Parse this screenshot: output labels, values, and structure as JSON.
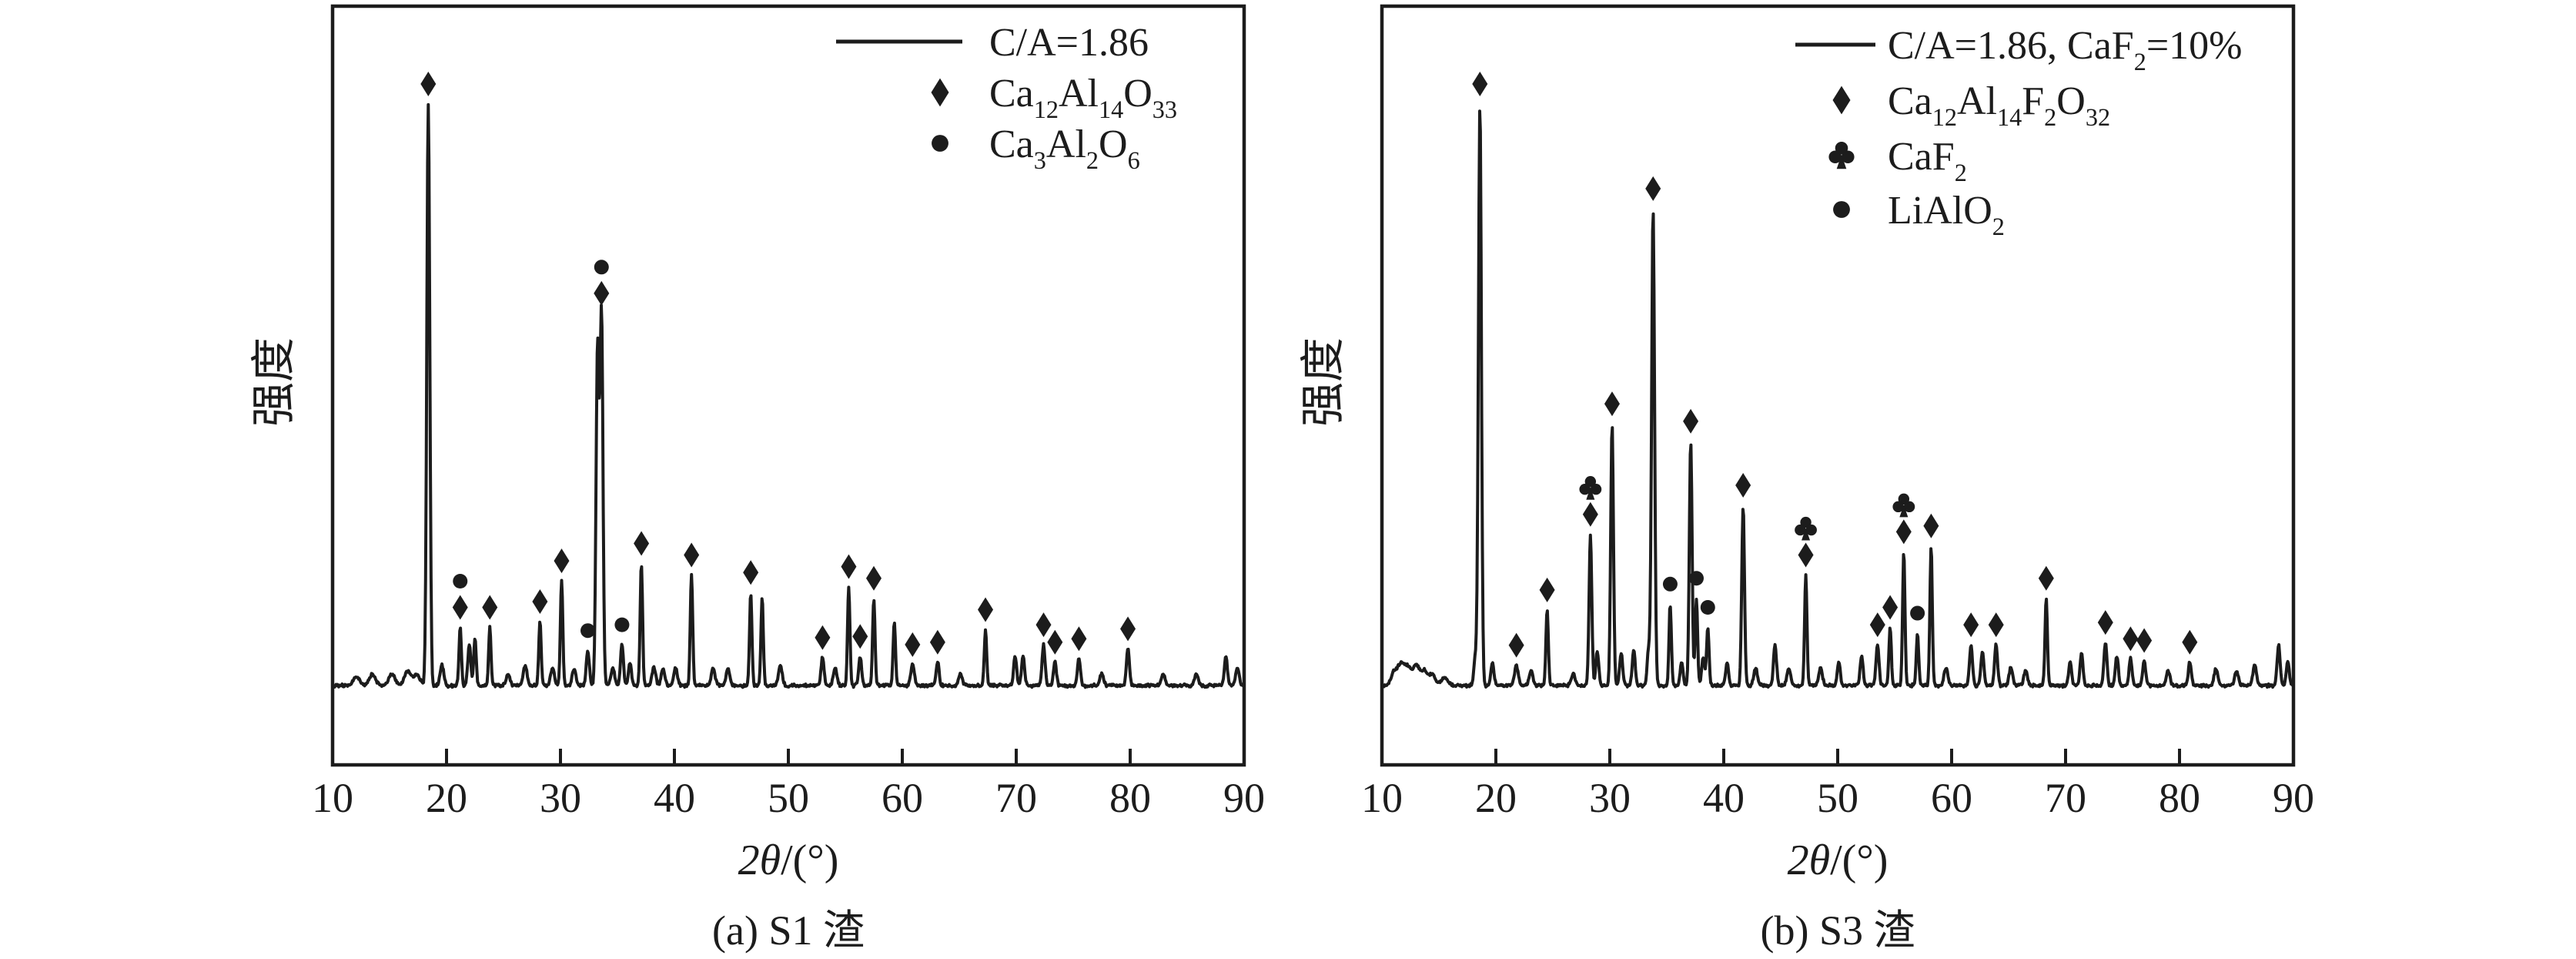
{
  "figure": {
    "background_color": "#ffffff",
    "ink_color": "#1c1c1c",
    "panels": [
      {
        "id": "a",
        "caption": "(a) S1 渣",
        "y_axis_label": "强度",
        "x_axis_label_italic": "2θ",
        "x_axis_label_rest": "/(°)",
        "x_tick_labels": [
          "10",
          "20",
          "30",
          "40",
          "50",
          "60",
          "70",
          "80",
          "90"
        ],
        "legend": [
          {
            "marker": "line",
            "label": "C/A=1.86"
          },
          {
            "marker": "diamond",
            "label": "Ca_{12}Al_{14}O_{33}"
          },
          {
            "marker": "dot",
            "label": "Ca_{3}Al_{2}O_{6}"
          }
        ]
      },
      {
        "id": "b",
        "caption": "(b) S3 渣",
        "y_axis_label": "强度",
        "x_axis_label_italic": "2θ",
        "x_axis_label_rest": "/(°)",
        "x_tick_labels": [
          "10",
          "20",
          "30",
          "40",
          "50",
          "60",
          "70",
          "80",
          "90"
        ],
        "legend": [
          {
            "marker": "line",
            "label": "C/A=1.86, CaF_{2}=10%"
          },
          {
            "marker": "diamond",
            "label": "Ca_{12}Al_{14}F_{2}O_{32}"
          },
          {
            "marker": "club",
            "label": "CaF_{2}"
          },
          {
            "marker": "dot",
            "label": "LiAlO_{2}"
          }
        ]
      }
    ]
  },
  "chart_data": [
    {
      "type": "line",
      "panel": "a",
      "title": "(a) S1 渣",
      "xlabel": "2θ/(°)",
      "ylabel": "强度",
      "xlim": [
        10,
        90
      ],
      "x_ticks": [
        10,
        20,
        30,
        40,
        50,
        60,
        70,
        80,
        90
      ],
      "grid": false,
      "legend_position": "top-right inside",
      "series": [
        {
          "name": "C/A=1.86",
          "style": "solid black XRD trace"
        }
      ],
      "phase_marker_key": {
        "D": "Ca12Al14O33 (diamond)",
        "O": "Ca3Al2O6 (dot)"
      },
      "peak_format": [
        "two_theta_deg",
        "relative_intensity_0_100",
        "phase_markers_bottom_to_top"
      ],
      "peaks": [
        [
          18.4,
          100,
          "D"
        ],
        [
          19.6,
          3.5,
          ""
        ],
        [
          21.2,
          10,
          "DO"
        ],
        [
          22.0,
          7,
          ""
        ],
        [
          22.5,
          8,
          ""
        ],
        [
          23.8,
          10,
          "D"
        ],
        [
          25.4,
          2,
          ""
        ],
        [
          26.9,
          3.5,
          ""
        ],
        [
          28.2,
          11,
          "D"
        ],
        [
          29.3,
          3,
          ""
        ],
        [
          30.1,
          18,
          "D"
        ],
        [
          31.2,
          3,
          ""
        ],
        [
          32.4,
          6,
          "O"
        ],
        [
          33.25,
          58,
          ""
        ],
        [
          33.6,
          64,
          "DO"
        ],
        [
          34.6,
          3,
          ""
        ],
        [
          35.4,
          7,
          "O"
        ],
        [
          36.1,
          4,
          ""
        ],
        [
          37.1,
          21,
          "D"
        ],
        [
          38.2,
          3,
          ""
        ],
        [
          39.0,
          3,
          ""
        ],
        [
          40.1,
          3,
          ""
        ],
        [
          41.5,
          19,
          "D"
        ],
        [
          43.4,
          3,
          ""
        ],
        [
          44.7,
          3,
          ""
        ],
        [
          46.7,
          16,
          "D"
        ],
        [
          47.7,
          15,
          ""
        ],
        [
          49.3,
          3.5,
          ""
        ],
        [
          53.0,
          4.8,
          "D"
        ],
        [
          54.1,
          3,
          ""
        ],
        [
          55.3,
          17,
          "D"
        ],
        [
          56.3,
          5,
          "D"
        ],
        [
          57.5,
          15,
          "D"
        ],
        [
          59.3,
          11,
          ""
        ],
        [
          60.9,
          3.6,
          "D"
        ],
        [
          63.1,
          4,
          "D"
        ],
        [
          65.1,
          2,
          ""
        ],
        [
          67.3,
          9.6,
          "D"
        ],
        [
          69.9,
          5,
          ""
        ],
        [
          70.6,
          5,
          ""
        ],
        [
          72.4,
          7,
          "D"
        ],
        [
          73.4,
          4,
          "D"
        ],
        [
          75.5,
          4.6,
          "D"
        ],
        [
          77.5,
          2,
          ""
        ],
        [
          79.8,
          6.3,
          "D"
        ],
        [
          82.9,
          2,
          ""
        ],
        [
          85.8,
          2,
          ""
        ],
        [
          88.4,
          5,
          ""
        ],
        [
          89.4,
          3,
          ""
        ]
      ],
      "baseline_noise_humps": [
        [
          12.1,
          1.5
        ],
        [
          13.5,
          2
        ],
        [
          15.2,
          2
        ],
        [
          16.6,
          2.5
        ],
        [
          17.4,
          2
        ]
      ]
    },
    {
      "type": "line",
      "panel": "b",
      "title": "(b) S3 渣",
      "xlabel": "2θ/(°)",
      "ylabel": "强度",
      "xlim": [
        10,
        90
      ],
      "x_ticks": [
        10,
        20,
        30,
        40,
        50,
        60,
        70,
        80,
        90
      ],
      "grid": false,
      "legend_position": "top-right inside",
      "series": [
        {
          "name": "C/A=1.86, CaF2=10%",
          "style": "solid black XRD trace"
        }
      ],
      "phase_marker_key": {
        "D": "Ca12Al14F2O32 (diamond)",
        "C": "CaF2 (club)",
        "O": "LiAlO2 (dot)"
      },
      "peak_format": [
        "two_theta_deg",
        "relative_intensity_0_100",
        "phase_markers_bottom_to_top"
      ],
      "peaks": [
        [
          18.2,
          5,
          ""
        ],
        [
          18.6,
          100,
          "D"
        ],
        [
          19.7,
          4,
          ""
        ],
        [
          21.8,
          3.5,
          "D"
        ],
        [
          23.1,
          2.6,
          ""
        ],
        [
          24.5,
          13,
          "D"
        ],
        [
          26.8,
          2,
          ""
        ],
        [
          28.3,
          26,
          "DC"
        ],
        [
          28.9,
          6,
          ""
        ],
        [
          30.2,
          45,
          "D"
        ],
        [
          31.0,
          5.5,
          ""
        ],
        [
          32.1,
          6,
          ""
        ],
        [
          33.4,
          6,
          ""
        ],
        [
          33.8,
          82,
          "D"
        ],
        [
          35.3,
          14,
          "O"
        ],
        [
          36.3,
          4,
          ""
        ],
        [
          37.1,
          42,
          "D"
        ],
        [
          37.6,
          15,
          "O"
        ],
        [
          38.2,
          5,
          ""
        ],
        [
          38.6,
          10,
          "O"
        ],
        [
          40.3,
          4,
          ""
        ],
        [
          41.7,
          31,
          "D"
        ],
        [
          42.8,
          3,
          ""
        ],
        [
          44.5,
          7,
          ""
        ],
        [
          45.7,
          3,
          ""
        ],
        [
          47.2,
          19,
          "DC"
        ],
        [
          48.5,
          3,
          ""
        ],
        [
          50.1,
          4,
          ""
        ],
        [
          52.1,
          5,
          ""
        ],
        [
          53.5,
          7,
          "D"
        ],
        [
          54.6,
          10,
          "D"
        ],
        [
          55.8,
          23,
          "DC"
        ],
        [
          57.0,
          9,
          "O"
        ],
        [
          58.2,
          24,
          "D"
        ],
        [
          59.5,
          3,
          ""
        ],
        [
          61.7,
          7,
          "D"
        ],
        [
          62.7,
          6,
          ""
        ],
        [
          63.9,
          7,
          "D"
        ],
        [
          65.2,
          3,
          ""
        ],
        [
          66.5,
          2.5,
          ""
        ],
        [
          68.3,
          15,
          "D"
        ],
        [
          70.4,
          4,
          ""
        ],
        [
          71.4,
          5.5,
          ""
        ],
        [
          73.5,
          7.4,
          "D"
        ],
        [
          74.5,
          5,
          ""
        ],
        [
          75.7,
          4.6,
          "D"
        ],
        [
          76.9,
          4.3,
          "D"
        ],
        [
          79.0,
          2.5,
          ""
        ],
        [
          80.9,
          4,
          "D"
        ],
        [
          83.2,
          3,
          ""
        ],
        [
          85.0,
          2.5,
          ""
        ],
        [
          86.6,
          3.5,
          ""
        ],
        [
          88.7,
          7,
          ""
        ],
        [
          89.5,
          4,
          ""
        ]
      ],
      "baseline_noise_humps": [
        [
          11.1,
          2.5
        ],
        [
          11.7,
          3.5
        ],
        [
          12.3,
          3
        ],
        [
          13.0,
          3.5
        ],
        [
          13.7,
          2.5
        ],
        [
          14.4,
          2
        ],
        [
          15.5,
          1.5
        ]
      ]
    }
  ]
}
